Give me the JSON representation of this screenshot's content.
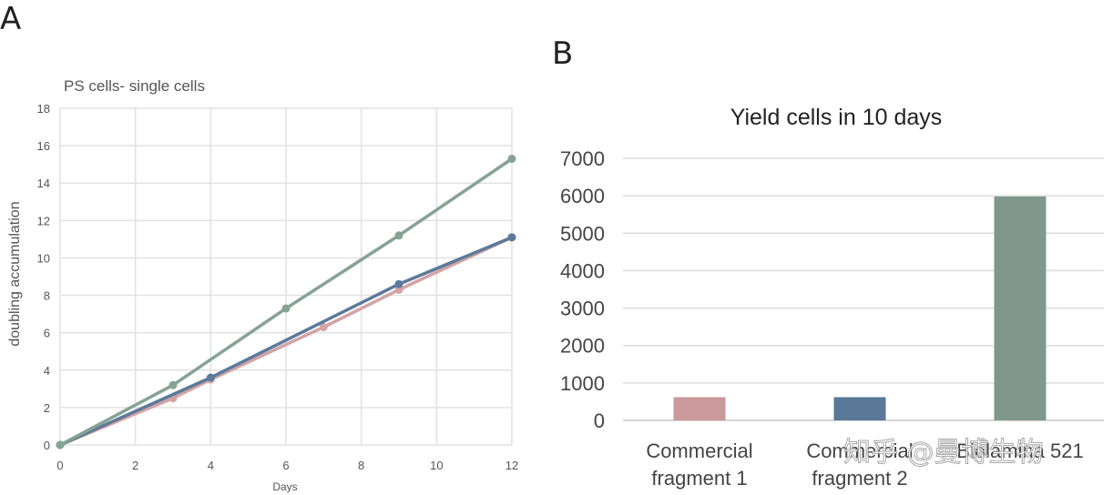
{
  "panel_a_letter": "A",
  "panel_b_letter": "B",
  "watermark": "知乎 @曼博生物",
  "chart_data": [
    {
      "type": "line",
      "title": "PS cells- single cells",
      "xlabel": "Days",
      "ylabel": "doubling accumulation",
      "xlim": [
        0,
        12
      ],
      "ylim": [
        0,
        18
      ],
      "x_ticks": [
        0,
        2,
        4,
        6,
        8,
        10,
        12
      ],
      "y_ticks": [
        0,
        2,
        4,
        6,
        8,
        10,
        12,
        14,
        16,
        18
      ],
      "grid": true,
      "legend": "none",
      "series": [
        {
          "color": "#d4a3a5",
          "x": [
            0,
            3,
            4,
            7,
            9,
            12
          ],
          "y": [
            0,
            2.5,
            3.5,
            6.3,
            8.3,
            11.1
          ]
        },
        {
          "color": "#5c7a99",
          "x": [
            0,
            4,
            9,
            12
          ],
          "y": [
            0,
            3.6,
            8.6,
            11.1
          ]
        },
        {
          "color": "#86a394",
          "x": [
            0,
            3,
            6,
            9,
            12
          ],
          "y": [
            0,
            3.2,
            7.3,
            11.2,
            15.3
          ]
        }
      ]
    },
    {
      "type": "bar",
      "title": "Yield cells in 10 days",
      "categories": [
        "Commercial fragment 1",
        "Commercial fragment 2",
        "Biolamina 521"
      ],
      "category_lines": [
        [
          "Commercial",
          "fragment 1"
        ],
        [
          "Commercial",
          "fragment 2"
        ],
        [
          "Biolamina 521"
        ]
      ],
      "values": [
        620,
        620,
        5980
      ],
      "colors": [
        "#c9999b",
        "#5a7898",
        "#7f978d"
      ],
      "ylim": [
        0,
        7000
      ],
      "y_ticks": [
        0,
        1000,
        2000,
        3000,
        4000,
        5000,
        6000,
        7000
      ],
      "grid": true,
      "legend": "none"
    }
  ]
}
